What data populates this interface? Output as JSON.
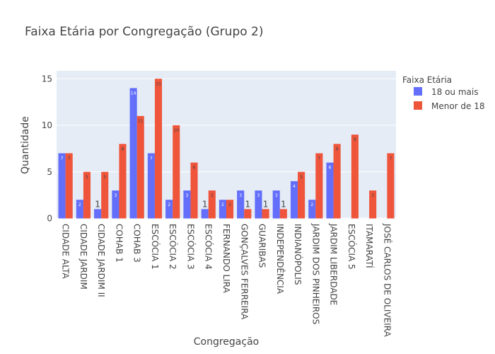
{
  "chart_data": {
    "type": "bar",
    "barmode": "group",
    "title": "Faixa Etária por Congregação (Grupo 2)",
    "xlabel": "Congregação",
    "ylabel": "Quantidade",
    "ylim": [
      0,
      15.8
    ],
    "yticks": [
      0,
      5,
      10,
      15
    ],
    "ytick_labels": [
      "0",
      "5",
      "10",
      "15"
    ],
    "grid": true,
    "legend": {
      "title": "Faixa Etária",
      "position": "top-right"
    },
    "categories": [
      "CIDADE ALTA",
      "CIDADE JARDIM",
      "CIDADE JARDIM II",
      "COHAB 1",
      "COHAB 3",
      "ESCÓCIA 1",
      "ESCÓCIA 2",
      "ESCÓCIA 3",
      "ESCÓCIA 4",
      "FERNANDO LIRA",
      "GONÇALVES FERREIRA",
      "GUARIBAS",
      "INDEPENDÊNCIA",
      "INDIANÓPOLIS",
      "JARDIM DOS PINHEIROS",
      "JARDIM LIBERDADE",
      "ESCÓCIA 5",
      "ITAMARATÍ",
      "JOSÉ CARLOS DE OLIVEIRA"
    ],
    "series": [
      {
        "name": "18 ou mais",
        "color": "#636efa",
        "values": [
          7,
          2,
          1,
          3,
          14,
          7,
          2,
          3,
          1,
          2,
          3,
          3,
          3,
          4,
          2,
          6,
          null,
          null,
          null
        ]
      },
      {
        "name": "Menor de 18",
        "color": "#ef553b",
        "values": [
          7,
          5,
          5,
          8,
          11,
          15,
          10,
          6,
          3,
          2,
          1,
          1,
          1,
          5,
          7,
          8,
          9,
          3,
          7
        ]
      }
    ]
  },
  "colors": {
    "plot_bg": "#e5ecf6",
    "grid": "#ffffff",
    "text": "#444444"
  }
}
